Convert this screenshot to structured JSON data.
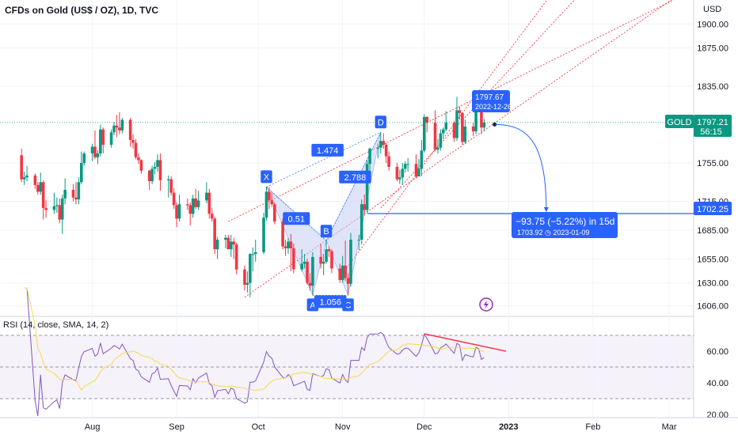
{
  "header": {
    "title": "CFDs on Gold (US$ / OZ), 1D, TVC"
  },
  "price_axis": {
    "currency": "USD",
    "ticks": [
      "1900.00",
      "1875.00",
      "1835.00",
      "1755.00",
      "1715.00",
      "1685.00",
      "1655.00",
      "1630.00",
      "1606.00"
    ]
  },
  "rsi_axis": {
    "ticks": [
      "60.00",
      "40.00",
      "20.00"
    ]
  },
  "time_axis": {
    "labels": [
      "Aug",
      "Sep",
      "Oct",
      "Nov",
      "Dec",
      "2023",
      "Feb",
      "Mar"
    ]
  },
  "badges": {
    "symbol": "GOLD",
    "last_price": "1797.21",
    "countdown": "56:15",
    "target_price": "1702.25"
  },
  "annotations": {
    "price_label": "1797.67",
    "price_label_date": "2022-12-26",
    "projection_main": "−93.75 (−5.22%) in 15d",
    "projection_sub": "1703.92 ◷ 2023-01-09",
    "pattern_points": [
      "X",
      "A",
      "B",
      "C",
      "D"
    ],
    "ratios": [
      "1.474",
      "0.51",
      "2.788",
      "1.056"
    ]
  },
  "rsi_panel": {
    "title": "RSI (14, close, SMA, 14, 2)"
  },
  "colors": {
    "up": "#089981",
    "down": "#f23645",
    "blue": "#2962ff",
    "pattern_fill": "#c5cff5",
    "rsi": "#7e57c2",
    "rsi_sma": "#f5d94a",
    "trend": "#f23645",
    "badge_green": "#089981"
  },
  "chart_data": {
    "type": "candlestick",
    "symbol": "GOLD",
    "interval": "1D",
    "ohlc": [
      {
        "date": "2022-07-06",
        "o": 1763,
        "h": 1770,
        "l": 1735,
        "c": 1738
      },
      {
        "date": "2022-07-07",
        "o": 1738,
        "h": 1746,
        "l": 1732,
        "c": 1740
      },
      {
        "date": "2022-07-08",
        "o": 1740,
        "h": 1752,
        "l": 1736,
        "c": 1742
      },
      {
        "date": "2022-07-11",
        "o": 1742,
        "h": 1744,
        "l": 1728,
        "c": 1732
      },
      {
        "date": "2022-07-12",
        "o": 1732,
        "h": 1735,
        "l": 1722,
        "c": 1725
      },
      {
        "date": "2022-07-13",
        "o": 1725,
        "h": 1745,
        "l": 1722,
        "c": 1735
      },
      {
        "date": "2022-07-14",
        "o": 1735,
        "h": 1737,
        "l": 1696,
        "c": 1708
      },
      {
        "date": "2022-07-15",
        "o": 1708,
        "h": 1716,
        "l": 1698,
        "c": 1706
      },
      {
        "date": "2022-07-18",
        "o": 1706,
        "h": 1724,
        "l": 1702,
        "c": 1710
      },
      {
        "date": "2022-07-19",
        "o": 1710,
        "h": 1719,
        "l": 1703,
        "c": 1711
      },
      {
        "date": "2022-07-20",
        "o": 1711,
        "h": 1718,
        "l": 1692,
        "c": 1696
      },
      {
        "date": "2022-07-21",
        "o": 1696,
        "h": 1722,
        "l": 1681,
        "c": 1718
      },
      {
        "date": "2022-07-22",
        "o": 1718,
        "h": 1739,
        "l": 1712,
        "c": 1727
      },
      {
        "date": "2022-07-25",
        "o": 1727,
        "h": 1733,
        "l": 1715,
        "c": 1719
      },
      {
        "date": "2022-07-26",
        "o": 1719,
        "h": 1735,
        "l": 1712,
        "c": 1717
      },
      {
        "date": "2022-07-27",
        "o": 1717,
        "h": 1740,
        "l": 1712,
        "c": 1735
      },
      {
        "date": "2022-07-28",
        "o": 1735,
        "h": 1767,
        "l": 1733,
        "c": 1755
      },
      {
        "date": "2022-07-29",
        "o": 1755,
        "h": 1767,
        "l": 1752,
        "c": 1765
      },
      {
        "date": "2022-08-01",
        "o": 1765,
        "h": 1775,
        "l": 1757,
        "c": 1772
      },
      {
        "date": "2022-08-02",
        "o": 1772,
        "h": 1789,
        "l": 1759,
        "c": 1761
      },
      {
        "date": "2022-08-03",
        "o": 1761,
        "h": 1768,
        "l": 1754,
        "c": 1765
      },
      {
        "date": "2022-08-04",
        "o": 1765,
        "h": 1795,
        "l": 1762,
        "c": 1790
      },
      {
        "date": "2022-08-05",
        "o": 1790,
        "h": 1792,
        "l": 1765,
        "c": 1774
      },
      {
        "date": "2022-08-08",
        "o": 1774,
        "h": 1790,
        "l": 1771,
        "c": 1787
      },
      {
        "date": "2022-08-09",
        "o": 1787,
        "h": 1798,
        "l": 1784,
        "c": 1794
      },
      {
        "date": "2022-08-10",
        "o": 1794,
        "h": 1805,
        "l": 1782,
        "c": 1792
      },
      {
        "date": "2022-08-11",
        "o": 1792,
        "h": 1808,
        "l": 1785,
        "c": 1789
      },
      {
        "date": "2022-08-12",
        "o": 1789,
        "h": 1802,
        "l": 1786,
        "c": 1800
      },
      {
        "date": "2022-08-15",
        "o": 1800,
        "h": 1802,
        "l": 1772,
        "c": 1779
      },
      {
        "date": "2022-08-16",
        "o": 1779,
        "h": 1785,
        "l": 1770,
        "c": 1776
      },
      {
        "date": "2022-08-17",
        "o": 1776,
        "h": 1780,
        "l": 1759,
        "c": 1761
      },
      {
        "date": "2022-08-18",
        "o": 1761,
        "h": 1765,
        "l": 1754,
        "c": 1758
      },
      {
        "date": "2022-08-19",
        "o": 1758,
        "h": 1759,
        "l": 1744,
        "c": 1747
      },
      {
        "date": "2022-08-22",
        "o": 1747,
        "h": 1748,
        "l": 1727,
        "c": 1736
      },
      {
        "date": "2022-08-23",
        "o": 1736,
        "h": 1752,
        "l": 1733,
        "c": 1749
      },
      {
        "date": "2022-08-24",
        "o": 1749,
        "h": 1756,
        "l": 1743,
        "c": 1751
      },
      {
        "date": "2022-08-25",
        "o": 1751,
        "h": 1764,
        "l": 1746,
        "c": 1758
      },
      {
        "date": "2022-08-26",
        "o": 1758,
        "h": 1765,
        "l": 1726,
        "c": 1737
      },
      {
        "date": "2022-08-29",
        "o": 1737,
        "h": 1742,
        "l": 1719,
        "c": 1738
      },
      {
        "date": "2022-08-30",
        "o": 1738,
        "h": 1741,
        "l": 1721,
        "c": 1724
      },
      {
        "date": "2022-08-31",
        "o": 1724,
        "h": 1729,
        "l": 1707,
        "c": 1711
      },
      {
        "date": "2022-09-01",
        "o": 1711,
        "h": 1714,
        "l": 1688,
        "c": 1697
      },
      {
        "date": "2022-09-02",
        "o": 1697,
        "h": 1722,
        "l": 1694,
        "c": 1712
      },
      {
        "date": "2022-09-05",
        "o": 1712,
        "h": 1718,
        "l": 1706,
        "c": 1711
      },
      {
        "date": "2022-09-06",
        "o": 1711,
        "h": 1714,
        "l": 1690,
        "c": 1702
      },
      {
        "date": "2022-09-07",
        "o": 1702,
        "h": 1722,
        "l": 1698,
        "c": 1718
      },
      {
        "date": "2022-09-08",
        "o": 1718,
        "h": 1728,
        "l": 1707,
        "c": 1709
      },
      {
        "date": "2022-09-09",
        "o": 1709,
        "h": 1726,
        "l": 1706,
        "c": 1716
      },
      {
        "date": "2022-09-12",
        "o": 1716,
        "h": 1735,
        "l": 1713,
        "c": 1724
      },
      {
        "date": "2022-09-13",
        "o": 1724,
        "h": 1728,
        "l": 1697,
        "c": 1702
      },
      {
        "date": "2022-09-14",
        "o": 1702,
        "h": 1708,
        "l": 1694,
        "c": 1697
      },
      {
        "date": "2022-09-15",
        "o": 1697,
        "h": 1699,
        "l": 1660,
        "c": 1665
      },
      {
        "date": "2022-09-16",
        "o": 1665,
        "h": 1678,
        "l": 1655,
        "c": 1675
      },
      {
        "date": "2022-09-19",
        "o": 1675,
        "h": 1680,
        "l": 1666,
        "c": 1677
      },
      {
        "date": "2022-09-20",
        "o": 1677,
        "h": 1680,
        "l": 1665,
        "c": 1665
      },
      {
        "date": "2022-09-21",
        "o": 1665,
        "h": 1680,
        "l": 1657,
        "c": 1673
      },
      {
        "date": "2022-09-22",
        "o": 1673,
        "h": 1677,
        "l": 1655,
        "c": 1670
      },
      {
        "date": "2022-09-23",
        "o": 1670,
        "h": 1672,
        "l": 1639,
        "c": 1644
      },
      {
        "date": "2022-09-26",
        "o": 1644,
        "h": 1648,
        "l": 1622,
        "c": 1628
      },
      {
        "date": "2022-09-27",
        "o": 1628,
        "h": 1642,
        "l": 1620,
        "c": 1630
      },
      {
        "date": "2022-09-28",
        "o": 1630,
        "h": 1661,
        "l": 1615,
        "c": 1660
      },
      {
        "date": "2022-09-29",
        "o": 1660,
        "h": 1667,
        "l": 1642,
        "c": 1660
      },
      {
        "date": "2022-09-30",
        "o": 1660,
        "h": 1675,
        "l": 1652,
        "c": 1662
      },
      {
        "date": "2022-10-03",
        "o": 1662,
        "h": 1703,
        "l": 1660,
        "c": 1698
      },
      {
        "date": "2022-10-04",
        "o": 1698,
        "h": 1730,
        "l": 1695,
        "c": 1725
      },
      {
        "date": "2022-10-05",
        "o": 1725,
        "h": 1730,
        "l": 1707,
        "c": 1716
      },
      {
        "date": "2022-10-06",
        "o": 1716,
        "h": 1724,
        "l": 1709,
        "c": 1712
      },
      {
        "date": "2022-10-07",
        "o": 1712,
        "h": 1714,
        "l": 1691,
        "c": 1694
      },
      {
        "date": "2022-10-10",
        "o": 1694,
        "h": 1697,
        "l": 1665,
        "c": 1668
      },
      {
        "date": "2022-10-11",
        "o": 1668,
        "h": 1675,
        "l": 1658,
        "c": 1666
      },
      {
        "date": "2022-10-12",
        "o": 1666,
        "h": 1677,
        "l": 1660,
        "c": 1673
      },
      {
        "date": "2022-10-13",
        "o": 1673,
        "h": 1681,
        "l": 1642,
        "c": 1666
      },
      {
        "date": "2022-10-14",
        "o": 1666,
        "h": 1671,
        "l": 1640,
        "c": 1644
      },
      {
        "date": "2022-10-17",
        "o": 1644,
        "h": 1665,
        "l": 1642,
        "c": 1650
      },
      {
        "date": "2022-10-18",
        "o": 1650,
        "h": 1660,
        "l": 1645,
        "c": 1652
      },
      {
        "date": "2022-10-19",
        "o": 1652,
        "h": 1655,
        "l": 1628,
        "c": 1630
      },
      {
        "date": "2022-10-20",
        "o": 1630,
        "h": 1640,
        "l": 1622,
        "c": 1627
      },
      {
        "date": "2022-10-21",
        "o": 1627,
        "h": 1662,
        "l": 1617,
        "c": 1657
      },
      {
        "date": "2022-10-24",
        "o": 1657,
        "h": 1671,
        "l": 1645,
        "c": 1650
      },
      {
        "date": "2022-10-25",
        "o": 1650,
        "h": 1660,
        "l": 1638,
        "c": 1652
      },
      {
        "date": "2022-10-26",
        "o": 1652,
        "h": 1674,
        "l": 1650,
        "c": 1665
      },
      {
        "date": "2022-10-27",
        "o": 1665,
        "h": 1668,
        "l": 1657,
        "c": 1663
      },
      {
        "date": "2022-10-28",
        "o": 1663,
        "h": 1665,
        "l": 1640,
        "c": 1645
      },
      {
        "date": "2022-10-31",
        "o": 1645,
        "h": 1650,
        "l": 1630,
        "c": 1633
      },
      {
        "date": "2022-11-01",
        "o": 1633,
        "h": 1658,
        "l": 1630,
        "c": 1648
      },
      {
        "date": "2022-11-02",
        "o": 1648,
        "h": 1674,
        "l": 1632,
        "c": 1635
      },
      {
        "date": "2022-11-03",
        "o": 1635,
        "h": 1640,
        "l": 1617,
        "c": 1629
      },
      {
        "date": "2022-11-04",
        "o": 1629,
        "h": 1682,
        "l": 1626,
        "c": 1675
      },
      {
        "date": "2022-11-07",
        "o": 1675,
        "h": 1680,
        "l": 1664,
        "c": 1675
      },
      {
        "date": "2022-11-08",
        "o": 1675,
        "h": 1717,
        "l": 1670,
        "c": 1712
      },
      {
        "date": "2022-11-09",
        "o": 1712,
        "h": 1722,
        "l": 1700,
        "c": 1706
      },
      {
        "date": "2022-11-10",
        "o": 1706,
        "h": 1758,
        "l": 1703,
        "c": 1754
      },
      {
        "date": "2022-11-11",
        "o": 1754,
        "h": 1771,
        "l": 1745,
        "c": 1770
      },
      {
        "date": "2022-11-14",
        "o": 1770,
        "h": 1775,
        "l": 1760,
        "c": 1771
      },
      {
        "date": "2022-11-15",
        "o": 1771,
        "h": 1787,
        "l": 1765,
        "c": 1778
      },
      {
        "date": "2022-11-16",
        "o": 1778,
        "h": 1786,
        "l": 1770,
        "c": 1774
      },
      {
        "date": "2022-11-17",
        "o": 1774,
        "h": 1776,
        "l": 1755,
        "c": 1762
      },
      {
        "date": "2022-11-18",
        "o": 1762,
        "h": 1767,
        "l": 1747,
        "c": 1751
      },
      {
        "date": "2022-11-21",
        "o": 1751,
        "h": 1755,
        "l": 1736,
        "c": 1738
      },
      {
        "date": "2022-11-22",
        "o": 1738,
        "h": 1748,
        "l": 1733,
        "c": 1740
      },
      {
        "date": "2022-11-23",
        "o": 1740,
        "h": 1755,
        "l": 1732,
        "c": 1749
      },
      {
        "date": "2022-11-24",
        "o": 1749,
        "h": 1757,
        "l": 1745,
        "c": 1754
      },
      {
        "date": "2022-11-25",
        "o": 1754,
        "h": 1760,
        "l": 1746,
        "c": 1754
      },
      {
        "date": "2022-11-28",
        "o": 1754,
        "h": 1764,
        "l": 1739,
        "c": 1741
      },
      {
        "date": "2022-11-29",
        "o": 1741,
        "h": 1759,
        "l": 1741,
        "c": 1749
      },
      {
        "date": "2022-11-30",
        "o": 1749,
        "h": 1779,
        "l": 1741,
        "c": 1768
      },
      {
        "date": "2022-12-01",
        "o": 1768,
        "h": 1806,
        "l": 1766,
        "c": 1803
      },
      {
        "date": "2022-12-02",
        "o": 1803,
        "h": 1804,
        "l": 1787,
        "c": 1797
      },
      {
        "date": "2022-12-05",
        "o": 1797,
        "h": 1810,
        "l": 1767,
        "c": 1769
      },
      {
        "date": "2022-12-06",
        "o": 1769,
        "h": 1780,
        "l": 1765,
        "c": 1771
      },
      {
        "date": "2022-12-07",
        "o": 1771,
        "h": 1790,
        "l": 1768,
        "c": 1786
      },
      {
        "date": "2022-12-08",
        "o": 1786,
        "h": 1792,
        "l": 1781,
        "c": 1790
      },
      {
        "date": "2022-12-09",
        "o": 1790,
        "h": 1809,
        "l": 1788,
        "c": 1797
      },
      {
        "date": "2022-12-12",
        "o": 1797,
        "h": 1799,
        "l": 1777,
        "c": 1781
      },
      {
        "date": "2022-12-13",
        "o": 1781,
        "h": 1824,
        "l": 1778,
        "c": 1810
      },
      {
        "date": "2022-12-14",
        "o": 1810,
        "h": 1814,
        "l": 1800,
        "c": 1807
      },
      {
        "date": "2022-12-15",
        "o": 1807,
        "h": 1808,
        "l": 1774,
        "c": 1777
      },
      {
        "date": "2022-12-16",
        "o": 1777,
        "h": 1800,
        "l": 1775,
        "c": 1793
      },
      {
        "date": "2022-12-19",
        "o": 1793,
        "h": 1797,
        "l": 1783,
        "c": 1788
      },
      {
        "date": "2022-12-20",
        "o": 1788,
        "h": 1822,
        "l": 1785,
        "c": 1817
      },
      {
        "date": "2022-12-21",
        "o": 1817,
        "h": 1823,
        "l": 1810,
        "c": 1814
      },
      {
        "date": "2022-12-22",
        "o": 1814,
        "h": 1816,
        "l": 1785,
        "c": 1792
      },
      {
        "date": "2022-12-23",
        "o": 1792,
        "h": 1801,
        "l": 1788,
        "c": 1797
      }
    ],
    "price_range": [
      1595,
      1925
    ],
    "rsi_range": [
      18,
      82
    ],
    "rsi_levels": [
      70,
      50,
      30
    ],
    "last_price": 1797.21,
    "target_level": 1702.25,
    "projection": {
      "from_date": "2022-12-26",
      "from_price": 1797.67,
      "to_date": "2023-01-09",
      "to_price": 1703.92,
      "change": -93.75,
      "change_pct": -5.22,
      "bars": 15
    },
    "harmonic": [
      {
        "label": "X",
        "date": "2022-10-04",
        "price": 1730
      },
      {
        "label": "A",
        "date": "2022-10-21",
        "price": 1617
      },
      {
        "label": "B",
        "date": "2022-10-26",
        "price": 1674
      },
      {
        "label": "C",
        "date": "2022-11-03",
        "price": 1617
      },
      {
        "label": "D",
        "date": "2022-11-15",
        "price": 1787
      }
    ],
    "harmonic_ratios": [
      "1.474",
      "0.51",
      "2.788",
      "1.056"
    ]
  }
}
